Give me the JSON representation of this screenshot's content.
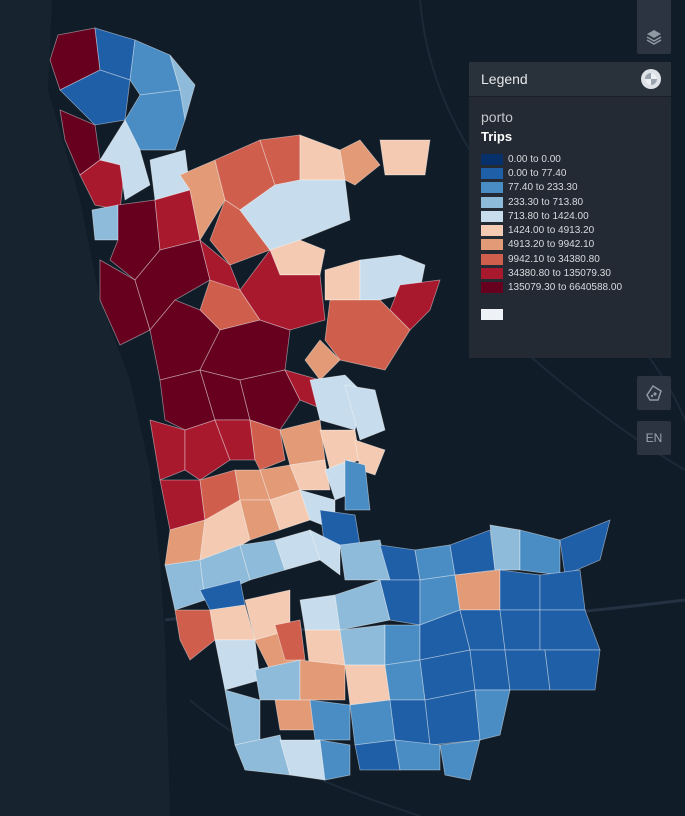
{
  "legend": {
    "title": "Legend",
    "dataset": "porto",
    "field": "Trips",
    "items": [
      {
        "label": "0.00 to 0.00",
        "color": "#08306b"
      },
      {
        "label": "0.00 to 77.40",
        "color": "#1f5fa8"
      },
      {
        "label": "77.40 to 233.30",
        "color": "#4a8dc4"
      },
      {
        "label": "233.30 to 713.80",
        "color": "#8fbbda"
      },
      {
        "label": "713.80 to 1424.00",
        "color": "#c7dcec"
      },
      {
        "label": "1424.00 to 4913.20",
        "color": "#f4cbb2"
      },
      {
        "label": "4913.20 to 9942.10",
        "color": "#e39a76"
      },
      {
        "label": "9942.10 to 34380.80",
        "color": "#cf5f4c"
      },
      {
        "label": "34380.80 to 135079.30",
        "color": "#a8192e"
      },
      {
        "label": "135079.30 to 6640588.00",
        "color": "#67001f"
      }
    ],
    "empty_color": "#eef2f6"
  },
  "controls": {
    "layers_icon": "stack-icon",
    "draw_icon": "polygon-draw-icon",
    "language_label": "EN"
  },
  "map": {
    "background_color": "#0f1a26",
    "ocean_color": "#16232f",
    "river_color": "#243343"
  }
}
